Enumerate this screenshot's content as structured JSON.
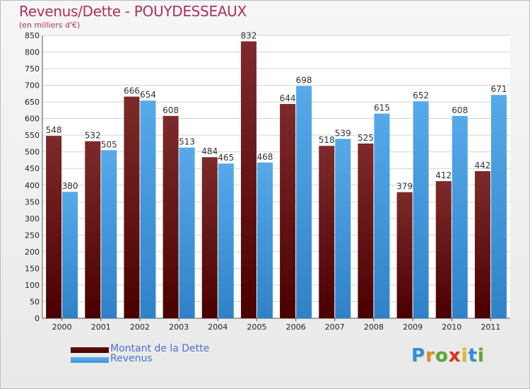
{
  "header": {
    "title": "Revenus/Dette - POUYDESSEAUX",
    "subtitle": "(en milliers d'€)"
  },
  "legend": [
    {
      "name": "Montant de la Dette",
      "color": "#6b0d0d"
    },
    {
      "name": "Revenus",
      "color": "#3f97df"
    }
  ],
  "logo": {
    "text": "Proxiti",
    "letters": [
      {
        "ch": "P",
        "color": "#2f8fd8"
      },
      {
        "ch": "r",
        "color": "#e08a1e"
      },
      {
        "ch": "o",
        "color": "#5aa832"
      },
      {
        "ch": "x",
        "color": "#e0301e"
      },
      {
        "ch": "i",
        "color": "#e5b81d"
      },
      {
        "ch": "t",
        "color": "#2f8fd8"
      },
      {
        "ch": "i",
        "color": "#5aa832"
      }
    ]
  },
  "chart_data": {
    "type": "bar",
    "categories": [
      "2000",
      "2001",
      "2002",
      "2003",
      "2004",
      "2005",
      "2006",
      "2007",
      "2008",
      "2009",
      "2010",
      "2011"
    ],
    "series": [
      {
        "name": "Montant de la Dette",
        "color": "#6b0d0d",
        "values": [
          548,
          532,
          666,
          608,
          484,
          832,
          644,
          518,
          525,
          379,
          412,
          442
        ]
      },
      {
        "name": "Revenus",
        "color": "#3f97df",
        "values": [
          380,
          505,
          654,
          513,
          465,
          468,
          698,
          539,
          615,
          652,
          608,
          671
        ]
      }
    ],
    "title": "Revenus/Dette - POUYDESSEAUX",
    "ylabel": "(en milliers d'€)",
    "ylim": [
      0,
      850
    ],
    "yticks": [
      0,
      50,
      100,
      150,
      200,
      250,
      300,
      350,
      400,
      450,
      500,
      550,
      600,
      650,
      700,
      750,
      800,
      850
    ],
    "grid": true,
    "legend_position": "bottom-left"
  }
}
